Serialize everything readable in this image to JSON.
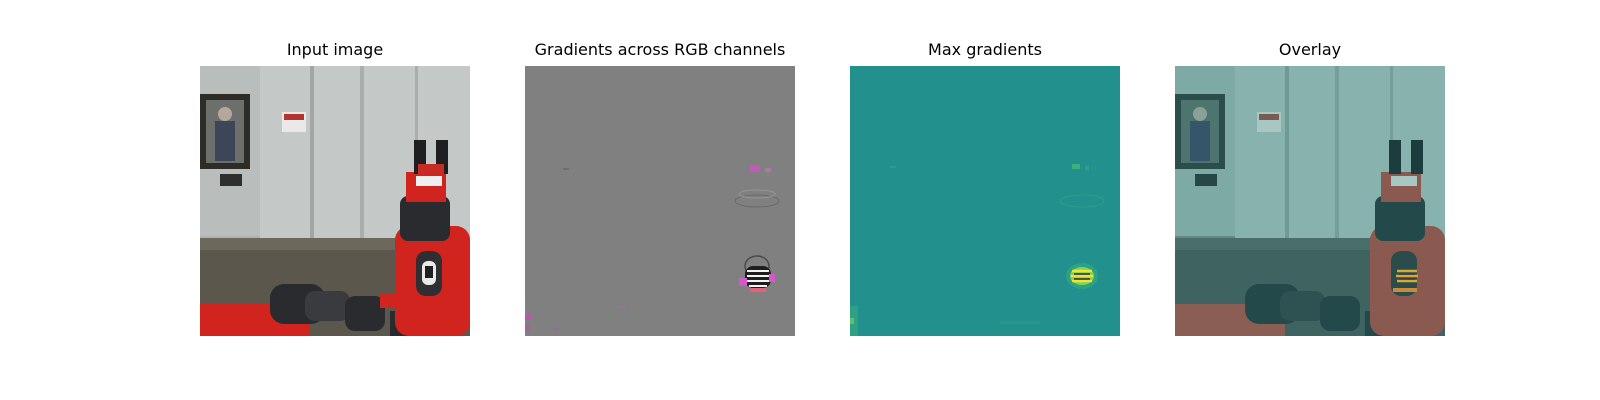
{
  "panels": [
    {
      "title": "Input image"
    },
    {
      "title": "Gradients across RGB channels"
    },
    {
      "title": "Max gradients"
    },
    {
      "title": "Overlay"
    }
  ],
  "colors": {
    "background": "#ffffff",
    "gradient_gray": "#808080",
    "max_gradient_teal": "#22908c",
    "robot_red": "#d1241f",
    "robot_black": "#2a2b2e",
    "floor_brown": "#5c574c",
    "wall_gray": "#b9bdbc",
    "highlight_yellow": "#f0e334",
    "highlight_green": "#7ed452",
    "gradient_magenta": "#d458c8"
  }
}
